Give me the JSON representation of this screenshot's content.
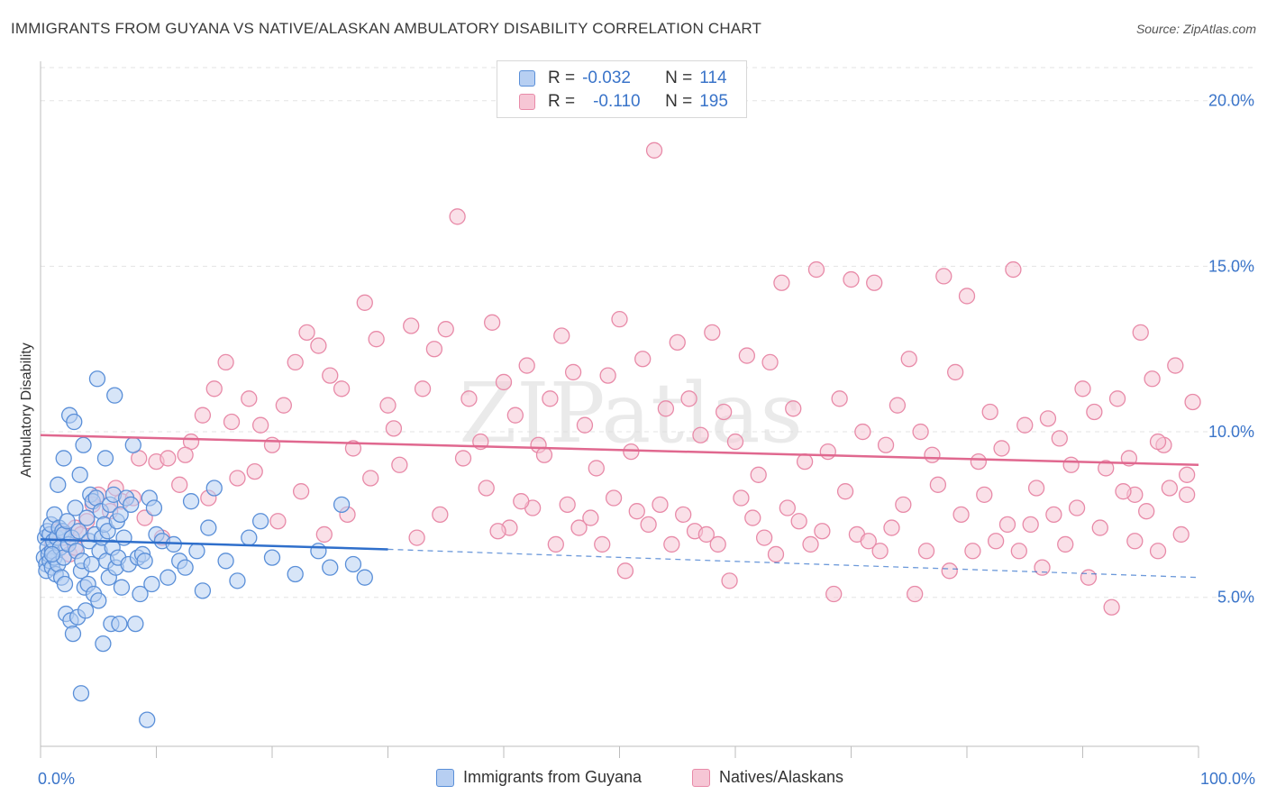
{
  "title": "IMMIGRANTS FROM GUYANA VS NATIVE/ALASKAN AMBULATORY DISABILITY CORRELATION CHART",
  "source": "Source: ZipAtlas.com",
  "watermark": "ZIPatlas",
  "legend": {
    "series": [
      {
        "r_label": "R =",
        "r_value": "-0.032",
        "n_label": "N =",
        "n_value": "114"
      },
      {
        "r_label": "R =",
        "r_value": "-0.110",
        "n_label": "N =",
        "n_value": "195"
      }
    ]
  },
  "colors": {
    "blue": "#5a8fd8",
    "blue_fill": "#b7cff2",
    "blue_line": "#2f6fcb",
    "pink": "#e88aa8",
    "pink_fill": "#f6c6d5",
    "pink_line": "#e0688f",
    "axis_text": "#3a74c9",
    "grid": "#e3e3e3"
  },
  "chart_data": {
    "type": "scatter",
    "title": "IMMIGRANTS FROM GUYANA VS NATIVE/ALASKAN AMBULATORY DISABILITY CORRELATION CHART",
    "ylabel": "Ambulatory Disability",
    "xlabel": "",
    "xlim": [
      0,
      100
    ],
    "ylim": [
      0.5,
      21.0
    ],
    "x_tick_labels": [
      "0.0%",
      "100.0%"
    ],
    "y_ticks": [
      5,
      10,
      15,
      20
    ],
    "y_tick_labels": [
      "5.0%",
      "10.0%",
      "15.0%",
      "20.0%"
    ],
    "legend_position": "bottom-center",
    "series": [
      {
        "name": "Immigrants from Guyana",
        "color": "blue",
        "trend": {
          "x0": 0,
          "y0": 6.75,
          "x1": 30,
          "y1": 6.45,
          "dash_to_x": 100,
          "dash_to_y": 5.6
        },
        "points": [
          [
            0.3,
            6.2
          ],
          [
            0.4,
            6.8
          ],
          [
            0.5,
            6.0
          ],
          [
            0.5,
            5.8
          ],
          [
            0.6,
            6.5
          ],
          [
            0.6,
            7.0
          ],
          [
            0.7,
            6.3
          ],
          [
            0.8,
            6.9
          ],
          [
            0.8,
            6.1
          ],
          [
            0.9,
            7.2
          ],
          [
            1.0,
            6.4
          ],
          [
            1.0,
            5.9
          ],
          [
            1.1,
            6.7
          ],
          [
            1.2,
            6.2
          ],
          [
            1.2,
            7.5
          ],
          [
            1.3,
            5.7
          ],
          [
            1.4,
            6.8
          ],
          [
            1.5,
            8.4
          ],
          [
            1.5,
            6.0
          ],
          [
            1.6,
            7.1
          ],
          [
            1.7,
            6.5
          ],
          [
            1.8,
            5.6
          ],
          [
            1.9,
            7.0
          ],
          [
            2.0,
            6.9
          ],
          [
            2.0,
            6.2
          ],
          [
            2.1,
            5.4
          ],
          [
            2.2,
            4.5
          ],
          [
            2.3,
            7.3
          ],
          [
            2.4,
            6.6
          ],
          [
            2.5,
            10.5
          ],
          [
            2.6,
            4.3
          ],
          [
            2.7,
            6.8
          ],
          [
            2.8,
            3.9
          ],
          [
            2.9,
            10.3
          ],
          [
            3.0,
            7.7
          ],
          [
            3.1,
            6.4
          ],
          [
            3.2,
            4.4
          ],
          [
            3.3,
            7.0
          ],
          [
            3.4,
            8.7
          ],
          [
            3.5,
            5.8
          ],
          [
            3.6,
            6.1
          ],
          [
            3.7,
            9.6
          ],
          [
            3.8,
            5.3
          ],
          [
            3.9,
            4.6
          ],
          [
            4.0,
            7.4
          ],
          [
            4.1,
            5.4
          ],
          [
            4.2,
            6.7
          ],
          [
            4.3,
            8.1
          ],
          [
            4.4,
            6.0
          ],
          [
            4.5,
            7.9
          ],
          [
            4.6,
            5.1
          ],
          [
            4.7,
            6.9
          ],
          [
            4.8,
            8.0
          ],
          [
            4.9,
            11.6
          ],
          [
            5.0,
            4.9
          ],
          [
            5.1,
            6.4
          ],
          [
            5.2,
            7.6
          ],
          [
            5.3,
            6.8
          ],
          [
            5.4,
            3.6
          ],
          [
            5.5,
            7.2
          ],
          [
            5.6,
            9.2
          ],
          [
            5.7,
            6.1
          ],
          [
            5.8,
            7.0
          ],
          [
            5.9,
            5.6
          ],
          [
            6.0,
            7.8
          ],
          [
            6.1,
            4.2
          ],
          [
            6.2,
            6.5
          ],
          [
            6.3,
            8.1
          ],
          [
            6.4,
            11.1
          ],
          [
            6.5,
            5.9
          ],
          [
            6.6,
            7.3
          ],
          [
            6.7,
            6.2
          ],
          [
            6.8,
            4.2
          ],
          [
            6.9,
            7.5
          ],
          [
            7.0,
            5.3
          ],
          [
            7.2,
            6.8
          ],
          [
            7.4,
            8.0
          ],
          [
            7.6,
            6.0
          ],
          [
            7.8,
            7.8
          ],
          [
            8.0,
            9.6
          ],
          [
            8.2,
            4.2
          ],
          [
            8.4,
            6.2
          ],
          [
            8.6,
            5.1
          ],
          [
            8.8,
            6.3
          ],
          [
            9.0,
            6.1
          ],
          [
            9.2,
            1.3
          ],
          [
            9.4,
            8.0
          ],
          [
            9.6,
            5.4
          ],
          [
            9.8,
            7.7
          ],
          [
            10.0,
            6.9
          ],
          [
            10.5,
            6.7
          ],
          [
            11.0,
            5.6
          ],
          [
            11.5,
            6.6
          ],
          [
            12.0,
            6.1
          ],
          [
            12.5,
            5.9
          ],
          [
            13.0,
            7.9
          ],
          [
            13.5,
            6.4
          ],
          [
            14.0,
            5.2
          ],
          [
            14.5,
            7.1
          ],
          [
            15.0,
            8.3
          ],
          [
            16.0,
            6.1
          ],
          [
            17.0,
            5.5
          ],
          [
            18.0,
            6.8
          ],
          [
            19.0,
            7.3
          ],
          [
            20.0,
            6.2
          ],
          [
            22.0,
            5.7
          ],
          [
            24.0,
            6.4
          ],
          [
            25.0,
            5.9
          ],
          [
            26.0,
            7.8
          ],
          [
            27.0,
            6.0
          ],
          [
            28.0,
            5.6
          ],
          [
            3.5,
            2.1
          ],
          [
            2.0,
            9.2
          ],
          [
            1.0,
            6.3
          ]
        ]
      },
      {
        "name": "Natives/Alaskans",
        "color": "pink",
        "trend": {
          "x0": 0,
          "y0": 9.9,
          "x1": 100,
          "y1": 9.0
        },
        "points": [
          [
            1.0,
            6.6
          ],
          [
            1.5,
            7.0
          ],
          [
            2.0,
            6.8
          ],
          [
            2.5,
            6.3
          ],
          [
            3.0,
            7.1
          ],
          [
            3.5,
            6.9
          ],
          [
            4.0,
            7.3
          ],
          [
            5.0,
            8.1
          ],
          [
            6.0,
            7.6
          ],
          [
            7.0,
            7.9
          ],
          [
            8.0,
            8.0
          ],
          [
            9.0,
            7.4
          ],
          [
            10.0,
            9.1
          ],
          [
            11.0,
            9.2
          ],
          [
            12.0,
            8.4
          ],
          [
            13.0,
            9.7
          ],
          [
            14.0,
            10.5
          ],
          [
            15.0,
            11.3
          ],
          [
            16.0,
            12.1
          ],
          [
            17.0,
            8.6
          ],
          [
            18.0,
            11.0
          ],
          [
            19.0,
            10.2
          ],
          [
            20.0,
            9.6
          ],
          [
            21.0,
            10.8
          ],
          [
            22.0,
            12.1
          ],
          [
            23.0,
            13.0
          ],
          [
            24.0,
            12.6
          ],
          [
            25.0,
            11.7
          ],
          [
            26.0,
            11.3
          ],
          [
            27.0,
            9.5
          ],
          [
            28.0,
            13.9
          ],
          [
            29.0,
            12.8
          ],
          [
            30.0,
            10.8
          ],
          [
            31.0,
            9.0
          ],
          [
            32.0,
            13.2
          ],
          [
            33.0,
            11.3
          ],
          [
            34.0,
            12.5
          ],
          [
            35.0,
            13.1
          ],
          [
            36.0,
            16.5
          ],
          [
            37.0,
            11.0
          ],
          [
            38.0,
            9.7
          ],
          [
            39.0,
            13.3
          ],
          [
            40.0,
            11.5
          ],
          [
            41.0,
            10.5
          ],
          [
            42.0,
            12.0
          ],
          [
            43.0,
            9.6
          ],
          [
            44.0,
            11.0
          ],
          [
            45.0,
            12.9
          ],
          [
            46.0,
            11.8
          ],
          [
            47.0,
            10.2
          ],
          [
            48.0,
            8.9
          ],
          [
            49.0,
            11.7
          ],
          [
            50.0,
            13.4
          ],
          [
            51.0,
            9.4
          ],
          [
            52.0,
            12.2
          ],
          [
            53.0,
            18.5
          ],
          [
            54.0,
            10.7
          ],
          [
            55.0,
            12.7
          ],
          [
            56.0,
            11.0
          ],
          [
            57.0,
            9.9
          ],
          [
            58.0,
            13.0
          ],
          [
            59.0,
            10.6
          ],
          [
            60.0,
            9.7
          ],
          [
            61.0,
            12.3
          ],
          [
            62.0,
            8.7
          ],
          [
            63.0,
            12.1
          ],
          [
            64.0,
            14.5
          ],
          [
            65.0,
            10.7
          ],
          [
            66.0,
            9.1
          ],
          [
            67.0,
            14.9
          ],
          [
            68.0,
            9.4
          ],
          [
            69.0,
            11.0
          ],
          [
            70.0,
            14.6
          ],
          [
            71.0,
            10.0
          ],
          [
            72.0,
            14.5
          ],
          [
            73.0,
            9.6
          ],
          [
            74.0,
            10.8
          ],
          [
            75.0,
            12.2
          ],
          [
            76.0,
            10.0
          ],
          [
            77.0,
            9.3
          ],
          [
            78.0,
            14.7
          ],
          [
            79.0,
            11.8
          ],
          [
            80.0,
            14.1
          ],
          [
            81.0,
            9.1
          ],
          [
            82.0,
            10.6
          ],
          [
            83.0,
            9.5
          ],
          [
            84.0,
            14.9
          ],
          [
            85.0,
            10.2
          ],
          [
            86.0,
            8.3
          ],
          [
            87.0,
            10.4
          ],
          [
            88.0,
            9.8
          ],
          [
            89.0,
            9.0
          ],
          [
            90.0,
            11.3
          ],
          [
            91.0,
            10.6
          ],
          [
            92.0,
            8.9
          ],
          [
            93.0,
            11.0
          ],
          [
            94.0,
            9.2
          ],
          [
            95.0,
            13.0
          ],
          [
            96.0,
            11.6
          ],
          [
            97.0,
            9.6
          ],
          [
            98.0,
            12.0
          ],
          [
            99.0,
            8.7
          ],
          [
            99.5,
            10.9
          ],
          [
            96.5,
            9.7
          ],
          [
            94.5,
            8.1
          ],
          [
            3.0,
            6.5
          ],
          [
            4.5,
            7.8
          ],
          [
            6.5,
            8.3
          ],
          [
            8.5,
            9.2
          ],
          [
            10.5,
            6.8
          ],
          [
            12.5,
            9.3
          ],
          [
            14.5,
            8.0
          ],
          [
            16.5,
            10.3
          ],
          [
            18.5,
            8.8
          ],
          [
            20.5,
            7.3
          ],
          [
            22.5,
            8.2
          ],
          [
            24.5,
            6.9
          ],
          [
            26.5,
            7.5
          ],
          [
            28.5,
            8.6
          ],
          [
            30.5,
            10.1
          ],
          [
            32.5,
            6.8
          ],
          [
            34.5,
            7.5
          ],
          [
            36.5,
            9.2
          ],
          [
            38.5,
            8.3
          ],
          [
            40.5,
            7.1
          ],
          [
            42.5,
            7.7
          ],
          [
            44.5,
            6.6
          ],
          [
            46.5,
            7.1
          ],
          [
            48.5,
            6.6
          ],
          [
            50.5,
            5.8
          ],
          [
            52.5,
            7.2
          ],
          [
            54.5,
            6.6
          ],
          [
            56.5,
            7.0
          ],
          [
            58.5,
            6.6
          ],
          [
            60.5,
            8.0
          ],
          [
            62.5,
            6.8
          ],
          [
            64.5,
            7.7
          ],
          [
            66.5,
            6.6
          ],
          [
            68.5,
            5.1
          ],
          [
            70.5,
            6.9
          ],
          [
            72.5,
            6.4
          ],
          [
            74.5,
            7.8
          ],
          [
            76.5,
            6.4
          ],
          [
            78.5,
            5.8
          ],
          [
            80.5,
            6.4
          ],
          [
            82.5,
            6.7
          ],
          [
            84.5,
            6.4
          ],
          [
            86.5,
            5.9
          ],
          [
            88.5,
            6.6
          ],
          [
            90.5,
            5.6
          ],
          [
            92.5,
            4.7
          ],
          [
            94.5,
            6.7
          ],
          [
            96.5,
            6.4
          ],
          [
            98.5,
            6.9
          ],
          [
            99.0,
            8.1
          ],
          [
            97.5,
            8.3
          ],
          [
            95.5,
            7.6
          ],
          [
            93.5,
            8.2
          ],
          [
            91.5,
            7.1
          ],
          [
            89.5,
            7.7
          ],
          [
            87.5,
            7.5
          ],
          [
            85.5,
            7.2
          ],
          [
            83.5,
            7.2
          ],
          [
            81.5,
            8.1
          ],
          [
            79.5,
            7.5
          ],
          [
            77.5,
            8.4
          ],
          [
            75.5,
            5.1
          ],
          [
            73.5,
            7.1
          ],
          [
            71.5,
            6.7
          ],
          [
            69.5,
            8.2
          ],
          [
            67.5,
            7.0
          ],
          [
            65.5,
            7.3
          ],
          [
            63.5,
            6.3
          ],
          [
            61.5,
            7.4
          ],
          [
            59.5,
            5.5
          ],
          [
            57.5,
            6.9
          ],
          [
            55.5,
            7.5
          ],
          [
            53.5,
            7.8
          ],
          [
            51.5,
            7.6
          ],
          [
            49.5,
            8.0
          ],
          [
            47.5,
            7.4
          ],
          [
            45.5,
            7.8
          ],
          [
            43.5,
            9.3
          ],
          [
            41.5,
            7.9
          ],
          [
            39.5,
            7.0
          ]
        ]
      }
    ]
  },
  "bottom_legend": {
    "items": [
      {
        "label": "Immigrants from Guyana"
      },
      {
        "label": "Natives/Alaskans"
      }
    ]
  }
}
